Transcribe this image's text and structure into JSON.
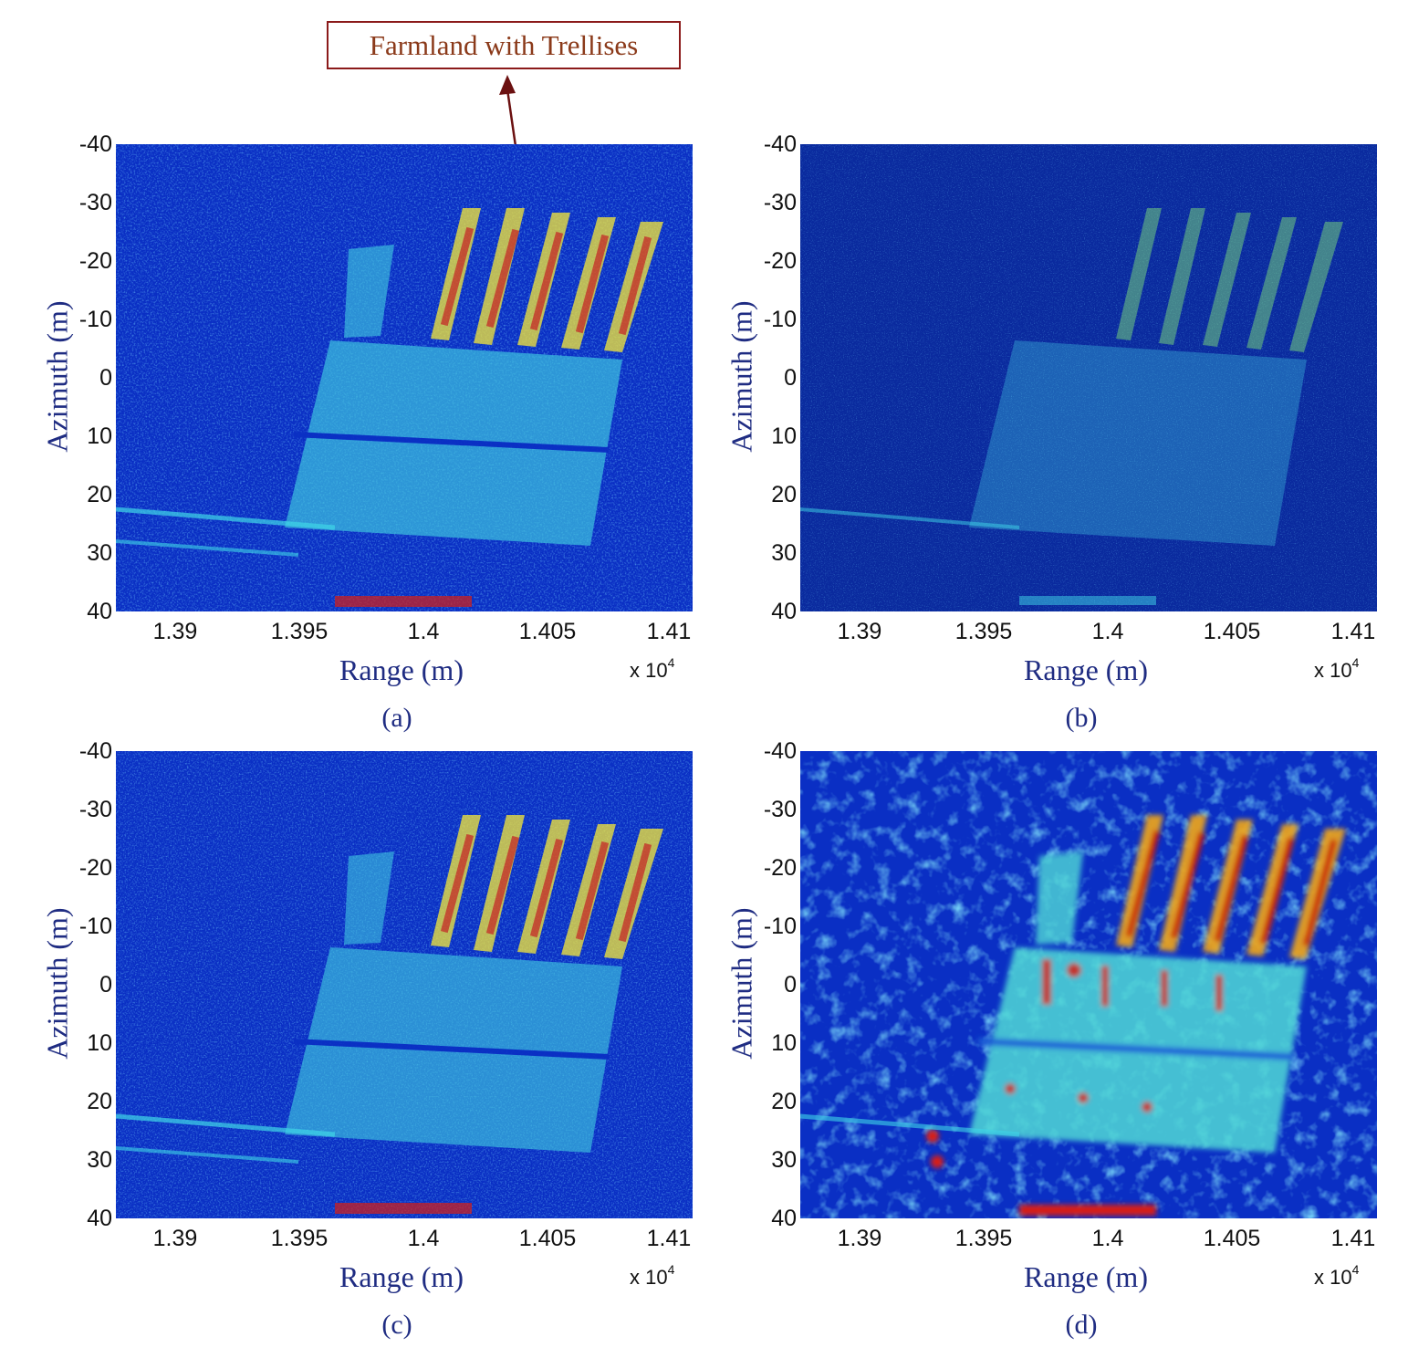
{
  "annotation": {
    "text": "Farmland with Trellises"
  },
  "axes": {
    "ylabel": "Azimuth (m)",
    "xlabel": "Range (m)",
    "x_multiplier_base": "x 10",
    "x_multiplier_exp": "4",
    "yticks": [
      "-40",
      "-30",
      "-20",
      "-10",
      "0",
      "10",
      "20",
      "30",
      "40"
    ],
    "xticks": [
      "1.39",
      "1.395",
      "1.4",
      "1.405",
      "1.41"
    ]
  },
  "panels": [
    {
      "id": "a",
      "caption": "(a)"
    },
    {
      "id": "b",
      "caption": "(b)"
    },
    {
      "id": "c",
      "caption": "(c)"
    },
    {
      "id": "d",
      "caption": "(d)"
    }
  ],
  "colors": {
    "background_blue": "#0a2fc4",
    "cyan": "#3fd6e8",
    "yellow": "#f2e63a",
    "red": "#d81e12",
    "label_blue": "#1f2c82",
    "annotation_red": "#8b1a1a"
  }
}
